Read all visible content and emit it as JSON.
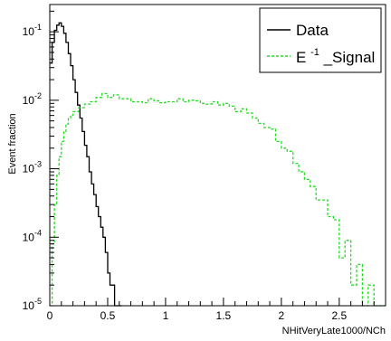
{
  "chart_data": {
    "type": "line",
    "style": "histogram-step",
    "xlabel": "NHitVeryLate1000/NCh",
    "ylabel": "Event fraction",
    "xlim": [
      0,
      2.9
    ],
    "ylim": [
      1e-05,
      0.25
    ],
    "yscale": "log",
    "grid": false,
    "legend_position": "top-right",
    "x_ticks": [
      "0",
      "0.5",
      "1",
      "1.5",
      "2",
      "2.5"
    ],
    "y_ticks": [
      {
        "value": 1e-05,
        "base": "10",
        "exp": "-5"
      },
      {
        "value": 0.0001,
        "base": "10",
        "exp": "-4"
      },
      {
        "value": 0.001,
        "base": "10",
        "exp": "-3"
      },
      {
        "value": 0.01,
        "base": "10",
        "exp": "-2"
      },
      {
        "value": 0.1,
        "base": "10",
        "exp": "-1"
      }
    ],
    "series": [
      {
        "name": "Data",
        "color": "#000000",
        "dash": "solid",
        "x": [
          0.0,
          0.02,
          0.04,
          0.06,
          0.08,
          0.1,
          0.12,
          0.14,
          0.16,
          0.18,
          0.2,
          0.22,
          0.24,
          0.26,
          0.28,
          0.3,
          0.32,
          0.34,
          0.36,
          0.38,
          0.4,
          0.42,
          0.44,
          0.46,
          0.48,
          0.5,
          0.52,
          0.54,
          0.56,
          0.58,
          0.6
        ],
        "y": [
          0.035,
          0.07,
          0.105,
          0.125,
          0.135,
          0.12,
          0.095,
          0.07,
          0.048,
          0.032,
          0.02,
          0.013,
          0.0085,
          0.0055,
          0.0035,
          0.0022,
          0.0015,
          0.0009,
          0.0006,
          0.00042,
          0.00028,
          0.0002,
          0.00014,
          0.0001,
          6e-05,
          3e-05,
          2e-05,
          2e-05,
          1e-05,
          1e-05,
          1e-05
        ]
      },
      {
        "name": "Signal",
        "legend_base": "E",
        "legend_sup": "-1",
        "legend_tail": "_Signal",
        "color": "#22dd22",
        "dash": "dashed",
        "x": [
          0.0,
          0.02,
          0.04,
          0.06,
          0.08,
          0.1,
          0.12,
          0.14,
          0.16,
          0.18,
          0.2,
          0.25,
          0.3,
          0.35,
          0.4,
          0.45,
          0.5,
          0.55,
          0.6,
          0.65,
          0.7,
          0.75,
          0.8,
          0.85,
          0.9,
          0.95,
          1.0,
          1.05,
          1.1,
          1.15,
          1.2,
          1.25,
          1.3,
          1.35,
          1.4,
          1.45,
          1.5,
          1.55,
          1.6,
          1.65,
          1.7,
          1.75,
          1.8,
          1.85,
          1.9,
          1.95,
          2.0,
          2.05,
          2.1,
          2.15,
          2.2,
          2.25,
          2.3,
          2.35,
          2.4,
          2.45,
          2.5,
          2.55,
          2.6,
          2.65,
          2.7,
          2.75,
          2.8,
          2.85,
          2.9
        ],
        "y": [
          1e-05,
          8e-05,
          0.0003,
          0.0008,
          0.0015,
          0.0025,
          0.0035,
          0.0045,
          0.0055,
          0.006,
          0.0068,
          0.0078,
          0.0088,
          0.0095,
          0.011,
          0.0125,
          0.011,
          0.012,
          0.0105,
          0.0105,
          0.0095,
          0.0095,
          0.0092,
          0.0105,
          0.0098,
          0.0092,
          0.0095,
          0.0095,
          0.0105,
          0.0095,
          0.01,
          0.0098,
          0.009,
          0.0088,
          0.0095,
          0.0085,
          0.009,
          0.0082,
          0.0068,
          0.0075,
          0.0065,
          0.0055,
          0.0046,
          0.004,
          0.0038,
          0.0025,
          0.002,
          0.0018,
          0.0012,
          0.0009,
          0.0007,
          0.00055,
          0.00035,
          0.00035,
          0.0002,
          0.00018,
          5e-05,
          9e-05,
          2e-05,
          4e-05,
          1e-05,
          2e-05,
          1e-05,
          1e-05,
          1e-05
        ]
      }
    ]
  }
}
